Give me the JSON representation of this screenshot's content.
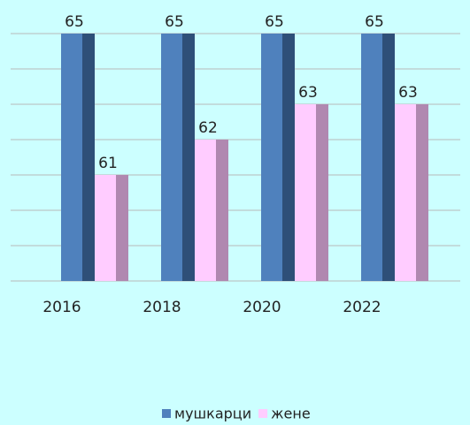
{
  "chart_data": {
    "type": "bar",
    "categories": [
      "2016",
      "2018",
      "2020",
      "2022"
    ],
    "series": [
      {
        "name": "мушкарци",
        "color": "#4f81bd",
        "side_color": "#2e4f78",
        "values": [
          65,
          65,
          65,
          65
        ]
      },
      {
        "name": "жене",
        "color": "#ffccff",
        "side_color": "#b088b0",
        "values": [
          61,
          62,
          63,
          63
        ]
      }
    ],
    "ylim": [
      58,
      65
    ],
    "yticks": [
      58,
      59,
      60,
      61,
      62,
      63,
      64,
      65
    ],
    "grid": true
  }
}
